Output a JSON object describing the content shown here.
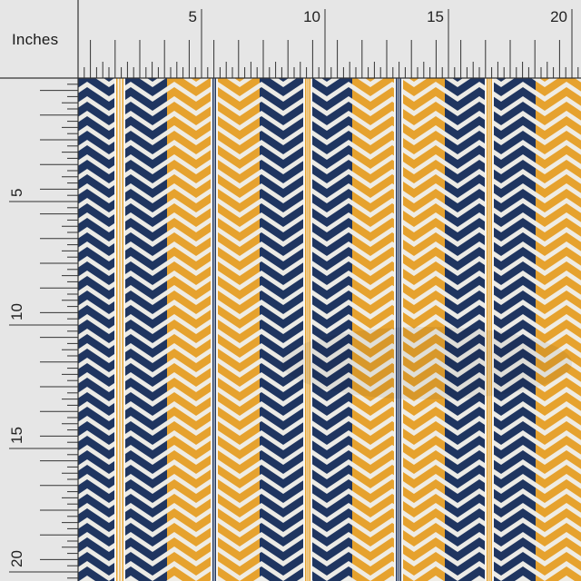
{
  "ruler": {
    "unit_label": "Inches",
    "top_numbers": [
      "5",
      "10",
      "15",
      "20"
    ],
    "left_numbers": [
      "5",
      "10",
      "15",
      "20"
    ],
    "background": "#e6e6e6",
    "tick_color": "#333333"
  },
  "fabric": {
    "pattern": "herringbone chevron stripes",
    "colors": {
      "navy": "#1f3560",
      "mustard": "#e6a22e",
      "off_white": "#ecebe6",
      "stripe_white": "#f7f6f2"
    },
    "stripe_sequence": [
      "navy-chevron",
      "mustard-pinstripe",
      "navy-chevron",
      "mustard-chevron",
      "navy-pinstripe",
      "mustard-chevron",
      "navy-chevron",
      "mustard-pinstripe",
      "navy-chevron",
      "mustard-chevron",
      "navy-pinstripe",
      "mustard-chevron",
      "navy-chevron",
      "mustard-pinstripe",
      "navy-chevron",
      "mustard-chevron"
    ]
  }
}
